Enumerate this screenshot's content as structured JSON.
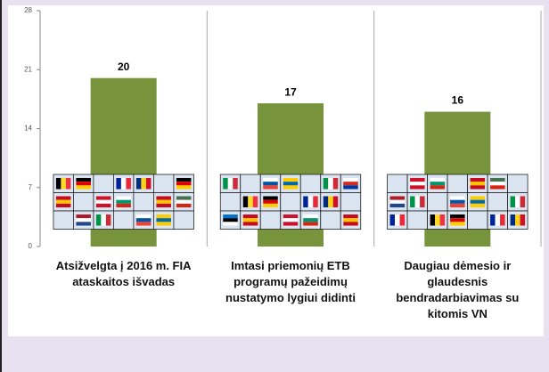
{
  "chart_data": {
    "type": "bar",
    "categories": [
      "Atsižvelgta į 2016 m. FIA ataskaitos išvadas",
      "Imtasi priemonių ETB programų pažeidimų nustatymo lygiui didinti",
      "Daugiau dėmesio ir glaudesnis bendradarbiavimas su kitomis VN"
    ],
    "values": [
      20,
      17,
      16
    ],
    "color": "#77933c",
    "ylim": [
      0,
      28
    ],
    "yticks": [
      0,
      7,
      14,
      21,
      28
    ],
    "grid": false
  }
}
